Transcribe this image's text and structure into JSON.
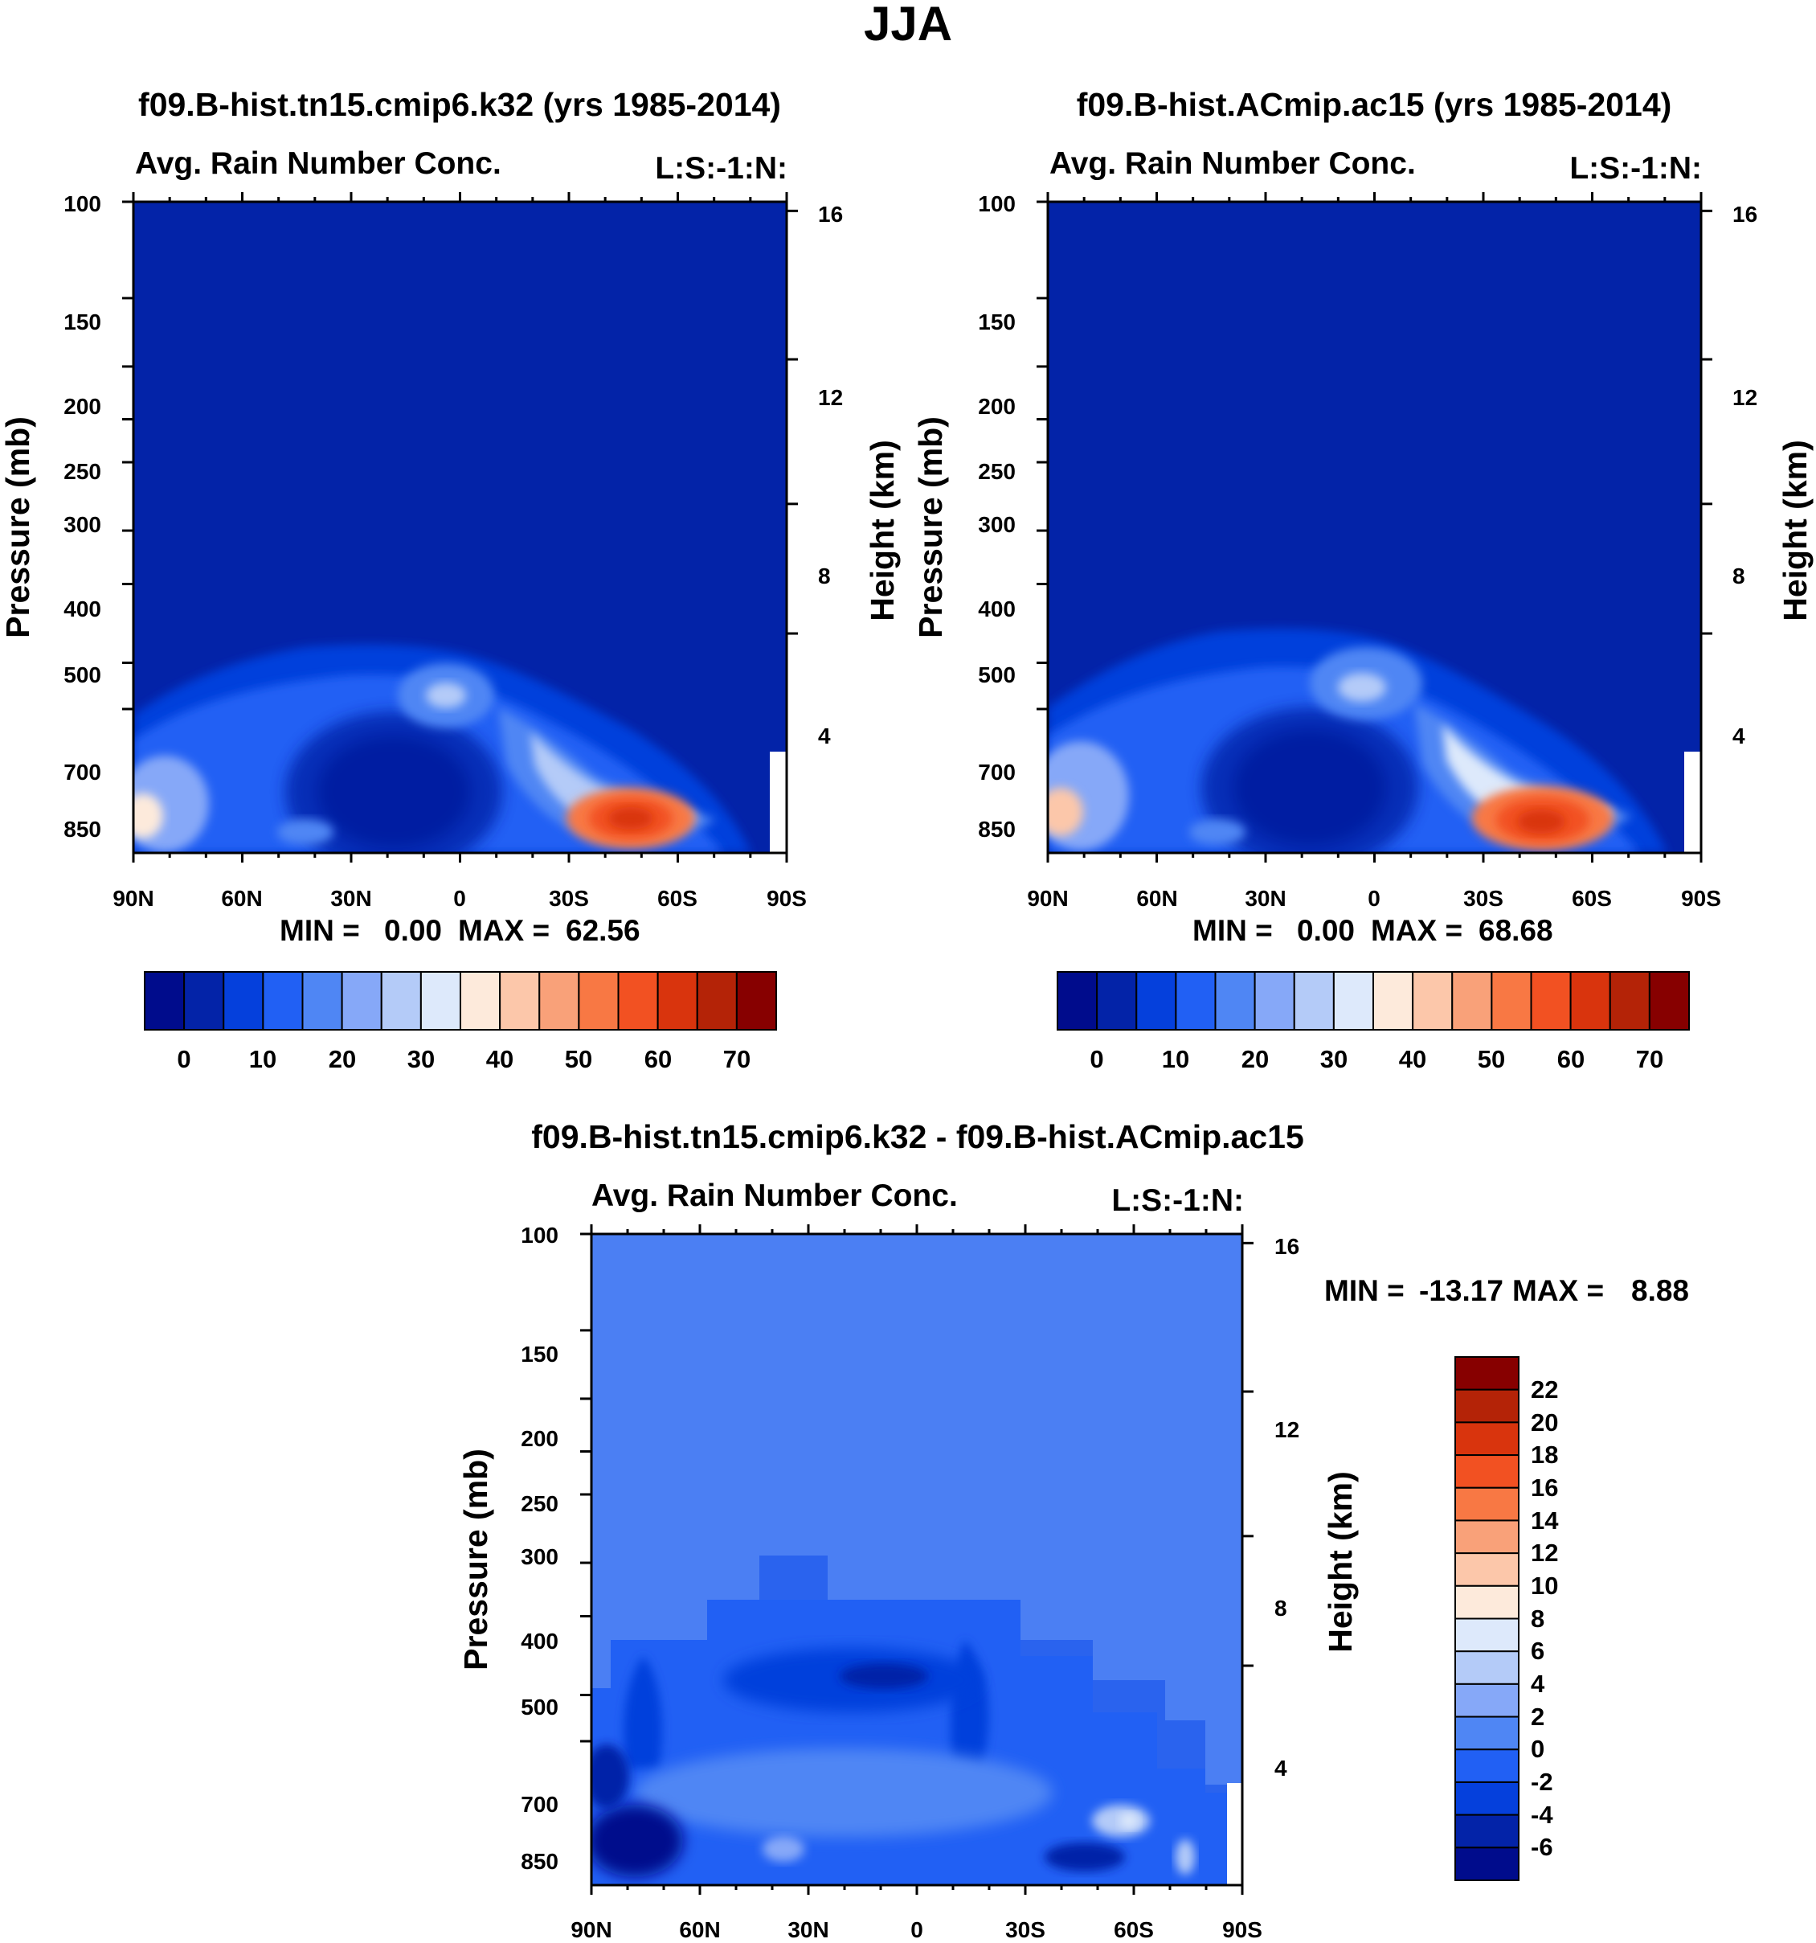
{
  "figure": {
    "title": "JJA"
  },
  "colors": {
    "abs_scale": [
      "#000c8c",
      "#0323a8",
      "#0540dc",
      "#2160f4",
      "#4f86f4",
      "#86a8f8",
      "#b4cbf8",
      "#dde9fb",
      "#fdeadb",
      "#fcc7aa",
      "#f9a179",
      "#f87844",
      "#f25122",
      "#d9340d",
      "#b42307",
      "#870000"
    ],
    "diff_scale": [
      "#000c8c",
      "#0323a8",
      "#0540dc",
      "#2160f4",
      "#4f86f4",
      "#86a8f8",
      "#b4cbf8",
      "#dde9fb",
      "#fdeadb",
      "#fcc7aa",
      "#f9a179",
      "#f87844",
      "#f25122",
      "#d9340d",
      "#b42307",
      "#870000"
    ]
  },
  "chart_data": [
    {
      "id": "panel1",
      "type": "heatmap",
      "title": "f09.B-hist.tn15.cmip6.k32 (yrs 1985-2014)",
      "subtitle_left": "Avg. Rain Number Conc.",
      "subtitle_right": "L:S:-1:N:",
      "xlabel": "",
      "ylabel": "Pressure (mb)",
      "y2label": "Height (km)",
      "xticks": [
        "90N",
        "60N",
        "30N",
        "0",
        "30S",
        "60S",
        "90S"
      ],
      "yticks": [
        "100",
        "150",
        "200",
        "250",
        "300",
        "400",
        "500",
        "700",
        "850"
      ],
      "y2ticks": [
        "16",
        "12",
        "8",
        "4"
      ],
      "stats": {
        "min_label": "MIN =",
        "min": "0.00",
        "max_label": "MAX =",
        "max": "62.56"
      },
      "levels": [
        "0",
        "10",
        "20",
        "30",
        "40",
        "50",
        "60",
        "70"
      ],
      "max_value": 62.56,
      "min_value": 0.0
    },
    {
      "id": "panel2",
      "type": "heatmap",
      "title": "f09.B-hist.ACmip.ac15 (yrs 1985-2014)",
      "subtitle_left": "Avg. Rain Number Conc.",
      "subtitle_right": "L:S:-1:N:",
      "xlabel": "",
      "ylabel": "Pressure (mb)",
      "y2label": "Height (km)",
      "xticks": [
        "90N",
        "60N",
        "30N",
        "0",
        "30S",
        "60S",
        "90S"
      ],
      "yticks": [
        "100",
        "150",
        "200",
        "250",
        "300",
        "400",
        "500",
        "700",
        "850"
      ],
      "y2ticks": [
        "16",
        "12",
        "8",
        "4"
      ],
      "stats": {
        "min_label": "MIN =",
        "min": "0.00",
        "max_label": "MAX =",
        "max": "68.68"
      },
      "levels": [
        "0",
        "10",
        "20",
        "30",
        "40",
        "50",
        "60",
        "70"
      ],
      "max_value": 68.68,
      "min_value": 0.0
    },
    {
      "id": "panel3",
      "type": "heatmap",
      "title": "f09.B-hist.tn15.cmip6.k32 - f09.B-hist.ACmip.ac15",
      "subtitle_left": "Avg. Rain Number Conc.",
      "subtitle_right": "L:S:-1:N:",
      "xlabel": "",
      "ylabel": "Pressure (mb)",
      "y2label": "Height (km)",
      "xticks": [
        "90N",
        "60N",
        "30N",
        "0",
        "30S",
        "60S",
        "90S"
      ],
      "yticks": [
        "100",
        "150",
        "200",
        "250",
        "300",
        "400",
        "500",
        "700",
        "850"
      ],
      "y2ticks": [
        "16",
        "12",
        "8",
        "4"
      ],
      "stats": {
        "min_label": "MIN =",
        "min": "-13.17",
        "max_label": "MAX =",
        "max": "8.88"
      },
      "levels": [
        "22",
        "20",
        "18",
        "16",
        "14",
        "12",
        "10",
        "8",
        "6",
        "4",
        "2",
        "0",
        "-2",
        "-4",
        "-6"
      ],
      "max_value": 8.88,
      "min_value": -13.17
    }
  ]
}
